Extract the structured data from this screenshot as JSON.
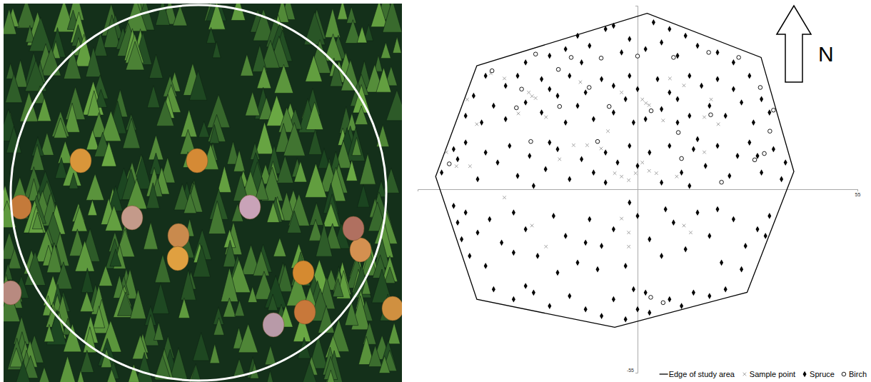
{
  "chart_data": {
    "type": "scatter",
    "xlim": [
      -55,
      55
    ],
    "ylim": [
      -55,
      55
    ],
    "xticks": [
      55
    ],
    "yticks": [
      -55
    ],
    "legend": "bottom-right",
    "annotations": [
      "N"
    ],
    "series": [
      {
        "name": "Edge of study area",
        "type": "line",
        "color": "#000000",
        "line_style": "solid",
        "x": [
          -40.2,
          2.4,
          30.9,
          39.1,
          27.4,
          -5.7,
          -40.2,
          -50.5
        ],
        "values": [
          37.0,
          52.7,
          39.5,
          5.3,
          -30.9,
          -41.4,
          -33.0,
          3.8
        ]
      },
      {
        "name": "Sample point",
        "marker": "x",
        "color": "#999999",
        "x": [
          -36.7,
          -33.3,
          -27.2,
          -26.4,
          -25.5,
          -29.8,
          -14.3,
          -4.0,
          1.2,
          2.1,
          2.9,
          11.6,
          16.7,
          20.2,
          -42.6,
          -40.2,
          -47.8,
          -45.3,
          -41.9,
          -22.9,
          -16.0,
          -12.6,
          -9.1,
          -5.7,
          -4.0,
          -2.2,
          -0.5,
          1.2,
          2.9,
          4.7,
          9.8,
          -4.0,
          -2.2,
          -2.2,
          11.6,
          13.3,
          -26.4,
          -22.9,
          -33.3,
          18.4,
          -7.4,
          -19.5,
          16.7,
          8.1,
          6.4
        ],
        "values": [
          34.7,
          33.2,
          29.0,
          27.9,
          27.3,
          22.7,
          32.1,
          29.0,
          26.9,
          25.8,
          25.2,
          31.1,
          21.6,
          19.5,
          26.9,
          19.5,
          11.1,
          6.9,
          6.9,
          21.6,
          13.2,
          13.2,
          12.2,
          4.8,
          3.8,
          2.7,
          4.8,
          8.0,
          5.5,
          4.8,
          3.8,
          -8.8,
          -13.0,
          -17.2,
          -10.9,
          -13.0,
          -10.9,
          -17.2,
          -2.5,
          26.9,
          17.4,
          9.0,
          11.1,
          33.2,
          20.6
        ]
      },
      {
        "name": "Spruce",
        "marker": "diamond",
        "color": "#000000",
        "x": [
          -15,
          -8,
          -6,
          4,
          8,
          12,
          -18,
          -12,
          -2,
          6,
          15,
          20,
          -22,
          -4,
          2,
          -28,
          24,
          -14,
          10,
          -38,
          -33,
          -30,
          -24,
          -22,
          -17,
          -13,
          -9,
          -6,
          -2,
          0,
          5,
          8,
          13,
          16,
          20,
          24,
          28,
          31,
          -41,
          -36,
          -33,
          -28,
          -24,
          -20,
          -15,
          -11,
          -6,
          -3,
          2,
          6,
          10,
          13,
          18,
          22,
          26,
          29,
          -43,
          -39,
          -18,
          -1,
          10,
          33,
          -46,
          -45,
          -43,
          -38,
          -35,
          -32,
          -30,
          -27,
          -23,
          -20,
          -17,
          -14,
          -11,
          -8,
          -5,
          -2,
          0,
          3,
          6,
          8,
          11,
          14,
          17,
          20,
          23,
          25,
          28,
          31,
          34,
          36,
          -40,
          -26,
          -8,
          13,
          30,
          37,
          -49,
          -22,
          15,
          -46,
          -45,
          -43,
          -40,
          -37,
          -34,
          -31,
          -28,
          -25,
          -21,
          -18,
          -15,
          -12,
          -9,
          -6,
          -3,
          0,
          3,
          6,
          9,
          12,
          15,
          18,
          21,
          24,
          27,
          30,
          33,
          -42,
          -38,
          -31,
          -20,
          -10,
          7,
          20,
          26,
          32,
          -44,
          -2,
          -13,
          -36,
          -31,
          -26,
          -22,
          -17,
          -13,
          -9,
          -6,
          -3,
          0,
          2,
          3,
          8,
          11,
          14,
          18,
          22,
          -28,
          -1
        ],
        "values": [
          46,
          48,
          49,
          50,
          48,
          46,
          42,
          43,
          45,
          44,
          43,
          41,
          40,
          41,
          42,
          38,
          38,
          38,
          40,
          34,
          31,
          34,
          33,
          30,
          34,
          29,
          33,
          31,
          34,
          30,
          33,
          29,
          34,
          31,
          33,
          30,
          34,
          27,
          28,
          25,
          21,
          26,
          23,
          28,
          25,
          21,
          23,
          27,
          21,
          24,
          27,
          22,
          25,
          22,
          26,
          20,
          22,
          20,
          20,
          20,
          20,
          23,
          12,
          9,
          14,
          11,
          8,
          13,
          4,
          10,
          6,
          12,
          3,
          9,
          5,
          11,
          8,
          13,
          7,
          11,
          2,
          13,
          5,
          12,
          7,
          13,
          4,
          10,
          14,
          5,
          12,
          3,
          3,
          1,
          2,
          1,
          10,
          8,
          5,
          14,
          15,
          -5,
          -10,
          -7,
          -13,
          -9,
          -16,
          -7,
          -12,
          -20,
          -8,
          -14,
          -22,
          -9,
          -17,
          -12,
          -23,
          -8,
          -15,
          -20,
          -10,
          -18,
          -7,
          -14,
          -22,
          -9,
          -17,
          -12,
          -8,
          -20,
          -23,
          -19,
          -25,
          -24,
          -6,
          -6,
          -24,
          -14,
          -15,
          -4,
          -16,
          -30,
          -33,
          -31,
          -35,
          -32,
          -36,
          -38,
          -33,
          -39,
          -36,
          -31,
          -37,
          -33,
          -35,
          -31,
          -32,
          -30,
          -29,
          -30
        ]
      },
      {
        "name": "Birch",
        "marker": "open-circle",
        "color": "#000000",
        "x": [
          -25.5,
          -16.6,
          -9.1,
          0,
          9.0,
          17.8,
          25.3,
          -36.4,
          -19.8,
          -29.0,
          -19.5,
          -7.1,
          3.4,
          -30.3,
          18.3,
          30.7,
          34.0,
          33.1,
          31.7,
          29.3,
          10.2,
          -26.7,
          -10.0,
          -47.1,
          11.0,
          21.0,
          3.3,
          6.4,
          -12.1
        ],
        "values": [
          40.5,
          39.5,
          39.3,
          39.9,
          39.5,
          41.0,
          39.5,
          35.5,
          35.9,
          30.0,
          24.8,
          24.8,
          23.5,
          24.4,
          22.3,
          30.5,
          23.7,
          17.4,
          10.7,
          8.8,
          17.0,
          14.3,
          14.3,
          7.6,
          9.2,
          2.1,
          -32.4,
          -34.0,
          30.5
        ]
      }
    ]
  }
}
